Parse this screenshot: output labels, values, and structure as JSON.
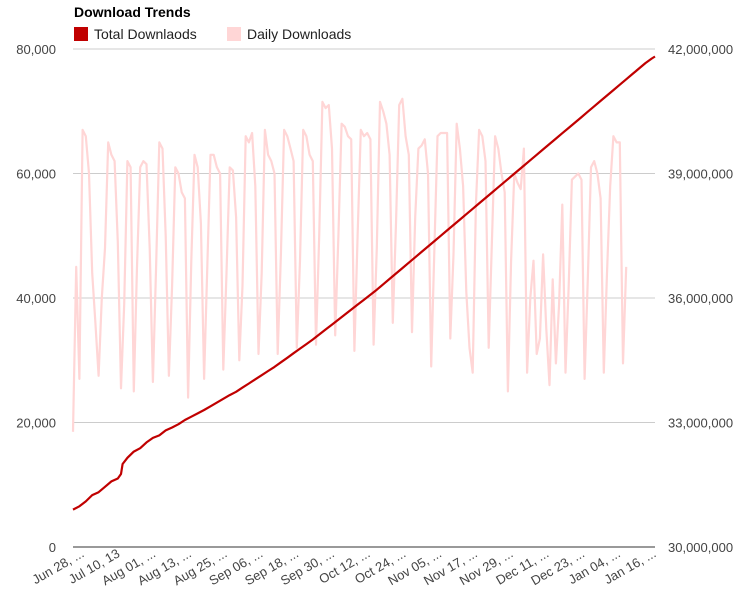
{
  "chart_data": {
    "type": "line",
    "title": "Download Trends",
    "legend_placement": "top-left",
    "colors": {
      "total": "#c00000",
      "daily": "#ffd6d6",
      "grid": "#cccccc"
    },
    "left_axis": {
      "range": [
        0,
        80000
      ],
      "ticks": [
        "0",
        "20,000",
        "40,000",
        "60,000",
        "80,000"
      ],
      "tick_values": [
        0,
        20000,
        40000,
        60000,
        80000
      ]
    },
    "right_axis": {
      "range": [
        30000000,
        42000000
      ],
      "ticks": [
        "30,000,000",
        "33,000,000",
        "36,000,000",
        "39,000,000",
        "42,000,000"
      ],
      "tick_values": [
        30000000,
        33000000,
        36000000,
        39000000,
        42000000
      ]
    },
    "x_tick_labels": [
      "Jun 28, ...",
      "Jul 10, 13",
      "Aug 01, ...",
      "Aug 13, ...",
      "Aug 25, ...",
      "Sep 06, ...",
      "Sep 18, ...",
      "Sep 30, ...",
      "Oct 12, ...",
      "Oct 24, ...",
      "Nov 05, ...",
      "Nov 17, ...",
      "Nov 29, ...",
      "Dec 11, ...",
      "Dec 23, ...",
      "Jan 04, ...",
      "Jan 16, ..."
    ],
    "series": [
      {
        "name": "Total Downlaods",
        "axis": "right",
        "style": "line",
        "points": [
          [
            0,
            30900000
          ],
          [
            4,
            30980000
          ],
          [
            8,
            31100000
          ],
          [
            12,
            31250000
          ],
          [
            16,
            31320000
          ],
          [
            20,
            31450000
          ],
          [
            24,
            31580000
          ],
          [
            28,
            31650000
          ],
          [
            30,
            31760000
          ],
          [
            31,
            32000000
          ],
          [
            34,
            32150000
          ],
          [
            38,
            32300000
          ],
          [
            42,
            32380000
          ],
          [
            46,
            32520000
          ],
          [
            50,
            32630000
          ],
          [
            54,
            32690000
          ],
          [
            58,
            32810000
          ],
          [
            62,
            32880000
          ],
          [
            66,
            32960000
          ],
          [
            70,
            33060000
          ],
          [
            74,
            33140000
          ],
          [
            78,
            33220000
          ],
          [
            82,
            33300000
          ],
          [
            86,
            33390000
          ],
          [
            90,
            33480000
          ],
          [
            94,
            33570000
          ],
          [
            98,
            33660000
          ],
          [
            102,
            33740000
          ],
          [
            106,
            33840000
          ],
          [
            110,
            33940000
          ],
          [
            114,
            34040000
          ],
          [
            118,
            34140000
          ],
          [
            122,
            34240000
          ],
          [
            126,
            34340000
          ],
          [
            130,
            34450000
          ],
          [
            134,
            34560000
          ],
          [
            138,
            34670000
          ],
          [
            142,
            34780000
          ],
          [
            146,
            34890000
          ],
          [
            150,
            35000000
          ],
          [
            154,
            35120000
          ],
          [
            158,
            35240000
          ],
          [
            162,
            35360000
          ],
          [
            166,
            35480000
          ],
          [
            170,
            35600000
          ],
          [
            174,
            35720000
          ],
          [
            178,
            35840000
          ],
          [
            182,
            35960000
          ],
          [
            186,
            36080000
          ],
          [
            190,
            36200000
          ],
          [
            194,
            36330000
          ],
          [
            198,
            36460000
          ],
          [
            202,
            36590000
          ],
          [
            206,
            36720000
          ],
          [
            210,
            36850000
          ],
          [
            214,
            36980000
          ],
          [
            218,
            37110000
          ],
          [
            222,
            37240000
          ],
          [
            226,
            37370000
          ],
          [
            230,
            37500000
          ],
          [
            234,
            37630000
          ],
          [
            238,
            37760000
          ],
          [
            242,
            37890000
          ],
          [
            246,
            38020000
          ],
          [
            250,
            38150000
          ],
          [
            254,
            38280000
          ],
          [
            258,
            38410000
          ],
          [
            262,
            38540000
          ],
          [
            266,
            38670000
          ],
          [
            270,
            38800000
          ],
          [
            274,
            38930000
          ],
          [
            278,
            39060000
          ],
          [
            282,
            39190000
          ],
          [
            286,
            39320000
          ],
          [
            290,
            39450000
          ],
          [
            294,
            39580000
          ],
          [
            298,
            39710000
          ],
          [
            302,
            39840000
          ],
          [
            306,
            39970000
          ],
          [
            310,
            40100000
          ],
          [
            314,
            40230000
          ],
          [
            318,
            40360000
          ],
          [
            322,
            40490000
          ],
          [
            326,
            40620000
          ],
          [
            330,
            40750000
          ],
          [
            334,
            40880000
          ],
          [
            338,
            41010000
          ],
          [
            342,
            41140000
          ],
          [
            346,
            41270000
          ],
          [
            350,
            41400000
          ],
          [
            354,
            41530000
          ],
          [
            358,
            41660000
          ],
          [
            362,
            41770000
          ],
          [
            364,
            41820000
          ]
        ]
      },
      {
        "name": "Daily Downloads",
        "axis": "left",
        "style": "line",
        "values": [
          18500,
          45000,
          27000,
          67000,
          66000,
          60000,
          44000,
          36000,
          27500,
          40000,
          48000,
          65000,
          63000,
          62000,
          49000,
          25500,
          39000,
          62000,
          61000,
          25000,
          45000,
          61000,
          62000,
          61500,
          48000,
          26500,
          45000,
          65000,
          64000,
          50000,
          27500,
          42000,
          61000,
          60000,
          57000,
          56000,
          24000,
          46000,
          63000,
          61000,
          52000,
          27000,
          45000,
          63000,
          63000,
          61000,
          60000,
          28500,
          44000,
          61000,
          60500,
          53000,
          30000,
          42000,
          66000,
          65000,
          66500,
          58000,
          31000,
          44000,
          67000,
          63000,
          62000,
          60000,
          31000,
          47000,
          67000,
          66000,
          64000,
          62000,
          32000,
          46000,
          67000,
          66000,
          63000,
          62000,
          32500,
          50000,
          71500,
          70500,
          71000,
          64000,
          34000,
          50000,
          68000,
          67500,
          66000,
          65500,
          31500,
          50000,
          67000,
          66000,
          66500,
          65500,
          32500,
          48000,
          71500,
          70000,
          68000,
          63000,
          36000,
          52000,
          71000,
          72000,
          66000,
          63000,
          34500,
          53000,
          64000,
          64500,
          65500,
          60000,
          29000,
          48000,
          66000,
          66500,
          66500,
          66500,
          33500,
          47000,
          68000,
          64000,
          58000,
          41000,
          32000,
          28000,
          55000,
          67000,
          66000,
          62000,
          32000,
          49000,
          66000,
          64000,
          60000,
          57000,
          25000,
          46000,
          60000,
          58500,
          57500,
          64000,
          28000,
          40000,
          46000,
          31000,
          33500,
          47000,
          35000,
          26000,
          43000,
          29500,
          39000,
          55000,
          28000,
          42000,
          59000,
          59500,
          60000,
          59000,
          27000,
          43000,
          61000,
          62000,
          60000,
          56000,
          28000,
          44000,
          58000,
          66000,
          65000,
          65000,
          29500,
          45000
        ],
        "x_start": 0,
        "x_step": 2
      }
    ]
  }
}
